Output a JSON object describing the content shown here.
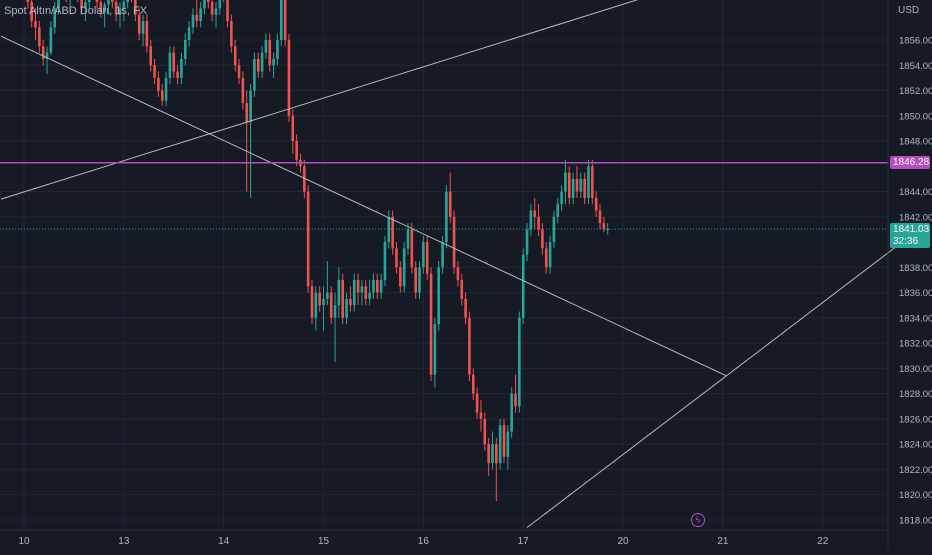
{
  "header": {
    "symbol": "Spot Altın/ABD Doları, 1s, FX",
    "currency": "USD"
  },
  "tags": {
    "level_price": "1846.28",
    "last_price": "1841.03",
    "countdown": "32:36"
  },
  "colors": {
    "background": "#161a25",
    "grid": "#232734",
    "up": "#26a69a",
    "down": "#ef5350",
    "trend_line": "#b7bac2",
    "level_line": "#b84ac2",
    "last_price_line": "#26a69a",
    "axis_text": "#b2b5be"
  },
  "icons": {
    "alert": "lightning-bolt-icon"
  },
  "chart_data": {
    "type": "candlestick",
    "title": "Spot Altın/ABD Doları, 1s, FX",
    "ylim": [
      1817,
      1860
    ],
    "y_ticks": [
      1856,
      1854,
      1852,
      1850,
      1848,
      1844,
      1842,
      1838,
      1836,
      1834,
      1832,
      1830,
      1828,
      1826,
      1824,
      1822,
      1820,
      1818
    ],
    "y_tick_labels": [
      "1856.00",
      "1854.00",
      "1852.00",
      "1850.00",
      "1848.00",
      "1844.00",
      "1842.00",
      "1838.00",
      "1836.00",
      "1834.00",
      "1832.00",
      "1830.00",
      "1828.00",
      "1826.00",
      "1824.00",
      "1822.00",
      "1820.00",
      "1818.00"
    ],
    "x_tick_labels": [
      "10",
      "13",
      "14",
      "15",
      "16",
      "17",
      "20",
      "21",
      "22"
    ],
    "x_tick_bar_index": [
      0,
      26,
      52,
      78,
      104,
      130,
      156,
      182,
      208
    ],
    "horizontal_level": 1846.28,
    "last_price": 1841.03,
    "trend_lines": [
      {
        "from": [
          -6,
          1856.3
        ],
        "to": [
          183,
          1829.4
        ]
      },
      {
        "from": [
          -6,
          1843.4
        ],
        "to": [
          183,
          1861.4
        ]
      },
      {
        "from": [
          131,
          1817.4
        ],
        "to": [
          233,
          1841.0
        ]
      }
    ],
    "candles": [
      [
        1861.0,
        1861.5,
        1859.5,
        1860.0
      ],
      [
        1860.0,
        1861.0,
        1858.5,
        1859.0
      ],
      [
        1859.0,
        1860.0,
        1857.0,
        1857.5
      ],
      [
        1857.5,
        1858.5,
        1856.0,
        1857.0
      ],
      [
        1857.0,
        1857.5,
        1855.0,
        1855.5
      ],
      [
        1855.5,
        1856.0,
        1854.0,
        1854.5
      ],
      [
        1854.5,
        1855.5,
        1853.3,
        1855.0
      ],
      [
        1855.0,
        1857.5,
        1854.8,
        1857.0
      ],
      [
        1857.0,
        1859.0,
        1856.5,
        1858.5
      ],
      [
        1858.5,
        1861.0,
        1858.0,
        1860.5
      ],
      [
        1860.5,
        1861.5,
        1859.5,
        1861.0
      ],
      [
        1861.0,
        1861.5,
        1859.0,
        1859.5
      ],
      [
        1859.5,
        1860.5,
        1858.0,
        1860.0
      ],
      [
        1860.0,
        1861.5,
        1859.5,
        1861.0
      ],
      [
        1861.0,
        1861.5,
        1859.0,
        1859.5
      ],
      [
        1859.5,
        1860.0,
        1858.0,
        1858.5
      ],
      [
        1858.5,
        1859.5,
        1857.5,
        1859.0
      ],
      [
        1859.0,
        1861.0,
        1858.5,
        1860.5
      ],
      [
        1860.5,
        1861.5,
        1859.5,
        1860.0
      ],
      [
        1860.0,
        1860.5,
        1858.5,
        1859.0
      ],
      [
        1859.0,
        1859.5,
        1857.8,
        1858.2
      ],
      [
        1858.2,
        1859.0,
        1857.0,
        1858.8
      ],
      [
        1858.8,
        1860.5,
        1858.0,
        1860.0
      ],
      [
        1860.0,
        1860.8,
        1858.5,
        1859.0
      ],
      [
        1859.0,
        1859.8,
        1857.5,
        1858.0
      ],
      [
        1858.0,
        1859.0,
        1857.0,
        1858.5
      ],
      [
        1858.5,
        1859.5,
        1857.5,
        1859.0
      ],
      [
        1859.0,
        1860.5,
        1858.5,
        1860.0
      ],
      [
        1860.0,
        1861.0,
        1859.0,
        1859.5
      ],
      [
        1859.5,
        1860.0,
        1857.5,
        1858.0
      ],
      [
        1858.0,
        1858.5,
        1856.0,
        1856.5
      ],
      [
        1856.5,
        1858.0,
        1855.5,
        1857.5
      ],
      [
        1857.5,
        1858.0,
        1855.0,
        1855.5
      ],
      [
        1855.5,
        1856.0,
        1853.5,
        1854.0
      ],
      [
        1854.0,
        1854.5,
        1852.5,
        1853.0
      ],
      [
        1853.0,
        1853.5,
        1851.5,
        1852.0
      ],
      [
        1852.0,
        1852.5,
        1850.8,
        1851.2
      ],
      [
        1851.2,
        1853.5,
        1850.8,
        1853.0
      ],
      [
        1853.0,
        1855.5,
        1852.5,
        1855.0
      ],
      [
        1855.0,
        1855.5,
        1853.0,
        1853.5
      ],
      [
        1853.5,
        1854.0,
        1852.5,
        1853.0
      ],
      [
        1853.0,
        1855.0,
        1852.5,
        1854.5
      ],
      [
        1854.5,
        1856.5,
        1854.0,
        1856.0
      ],
      [
        1856.0,
        1857.5,
        1855.5,
        1857.0
      ],
      [
        1857.0,
        1858.5,
        1856.5,
        1858.0
      ],
      [
        1858.0,
        1859.5,
        1857.0,
        1857.5
      ],
      [
        1857.5,
        1859.0,
        1857.0,
        1858.5
      ],
      [
        1858.5,
        1860.5,
        1858.0,
        1860.0
      ],
      [
        1860.0,
        1860.5,
        1858.5,
        1859.0
      ],
      [
        1859.0,
        1859.5,
        1857.5,
        1858.0
      ],
      [
        1858.0,
        1859.0,
        1857.0,
        1858.5
      ],
      [
        1858.5,
        1860.5,
        1858.0,
        1860.0
      ],
      [
        1860.0,
        1861.0,
        1859.0,
        1859.5
      ],
      [
        1859.5,
        1860.0,
        1857.0,
        1857.5
      ],
      [
        1857.5,
        1858.0,
        1855.0,
        1855.5
      ],
      [
        1855.5,
        1856.0,
        1853.5,
        1854.0
      ],
      [
        1854.0,
        1854.5,
        1852.5,
        1853.0
      ],
      [
        1853.0,
        1853.5,
        1850.5,
        1851.0
      ],
      [
        1851.0,
        1852.0,
        1844.0,
        1849.5
      ],
      [
        1849.5,
        1852.5,
        1843.5,
        1852.0
      ],
      [
        1852.0,
        1855.0,
        1851.5,
        1854.5
      ],
      [
        1854.5,
        1855.0,
        1853.0,
        1853.5
      ],
      [
        1853.5,
        1855.5,
        1853.0,
        1855.0
      ],
      [
        1855.0,
        1856.5,
        1854.5,
        1856.0
      ],
      [
        1856.0,
        1856.5,
        1853.5,
        1854.0
      ],
      [
        1854.0,
        1855.0,
        1853.0,
        1854.5
      ],
      [
        1854.5,
        1856.5,
        1854.0,
        1856.0
      ],
      [
        1856.0,
        1860.0,
        1855.5,
        1859.5
      ],
      [
        1859.5,
        1861.0,
        1855.5,
        1856.0
      ],
      [
        1856.0,
        1856.5,
        1849.5,
        1850.0
      ],
      [
        1850.0,
        1850.5,
        1847.0,
        1848.0
      ],
      [
        1848.0,
        1848.5,
        1846.0,
        1846.5
      ],
      [
        1846.5,
        1847.0,
        1845.5,
        1846.0
      ],
      [
        1846.0,
        1846.5,
        1843.5,
        1844.0
      ],
      [
        1844.0,
        1844.5,
        1836.0,
        1836.5
      ],
      [
        1836.5,
        1837.0,
        1833.5,
        1834.0
      ],
      [
        1834.0,
        1836.5,
        1833.0,
        1836.0
      ],
      [
        1836.0,
        1836.5,
        1834.5,
        1835.0
      ],
      [
        1835.0,
        1836.5,
        1833.0,
        1835.5
      ],
      [
        1835.5,
        1838.5,
        1835.0,
        1836.0
      ],
      [
        1836.0,
        1836.5,
        1833.5,
        1834.0
      ],
      [
        1834.0,
        1836.0,
        1830.5,
        1835.0
      ],
      [
        1835.0,
        1838.0,
        1834.0,
        1837.0
      ],
      [
        1837.0,
        1837.5,
        1833.5,
        1834.0
      ],
      [
        1834.0,
        1836.0,
        1833.5,
        1835.5
      ],
      [
        1835.5,
        1836.5,
        1834.5,
        1835.0
      ],
      [
        1835.0,
        1837.5,
        1834.5,
        1837.0
      ],
      [
        1837.0,
        1837.5,
        1835.0,
        1836.0
      ],
      [
        1836.0,
        1837.0,
        1835.0,
        1836.5
      ],
      [
        1836.5,
        1837.0,
        1835.0,
        1835.5
      ],
      [
        1835.5,
        1837.0,
        1835.0,
        1836.0
      ],
      [
        1836.0,
        1837.5,
        1835.5,
        1837.0
      ],
      [
        1837.0,
        1837.5,
        1835.5,
        1836.0
      ],
      [
        1836.0,
        1837.5,
        1835.5,
        1837.0
      ],
      [
        1837.0,
        1840.5,
        1836.5,
        1840.0
      ],
      [
        1840.0,
        1842.5,
        1839.5,
        1842.0
      ],
      [
        1842.0,
        1842.5,
        1839.0,
        1839.5
      ],
      [
        1839.5,
        1840.0,
        1837.5,
        1838.0
      ],
      [
        1838.0,
        1838.5,
        1836.0,
        1836.5
      ],
      [
        1836.5,
        1840.0,
        1836.0,
        1839.5
      ],
      [
        1839.5,
        1841.5,
        1839.0,
        1841.0
      ],
      [
        1841.0,
        1841.5,
        1837.5,
        1838.0
      ],
      [
        1838.0,
        1838.5,
        1835.5,
        1836.0
      ],
      [
        1836.0,
        1838.5,
        1835.5,
        1838.0
      ],
      [
        1838.0,
        1840.5,
        1837.5,
        1840.0
      ],
      [
        1840.0,
        1840.5,
        1837.0,
        1837.5
      ],
      [
        1837.5,
        1838.0,
        1829.0,
        1829.5
      ],
      [
        1829.5,
        1834.0,
        1828.5,
        1833.5
      ],
      [
        1833.5,
        1838.5,
        1833.0,
        1838.0
      ],
      [
        1838.0,
        1840.5,
        1837.5,
        1840.0
      ],
      [
        1840.0,
        1844.5,
        1839.5,
        1844.0
      ],
      [
        1844.0,
        1845.5,
        1841.5,
        1842.0
      ],
      [
        1842.0,
        1842.5,
        1837.5,
        1838.0
      ],
      [
        1838.0,
        1838.5,
        1836.5,
        1837.0
      ],
      [
        1837.0,
        1837.5,
        1835.0,
        1835.5
      ],
      [
        1835.5,
        1836.0,
        1833.5,
        1834.0
      ],
      [
        1834.0,
        1834.5,
        1829.0,
        1829.5
      ],
      [
        1829.5,
        1830.0,
        1827.5,
        1828.0
      ],
      [
        1828.0,
        1828.5,
        1826.0,
        1826.5
      ],
      [
        1826.5,
        1827.5,
        1825.0,
        1826.0
      ],
      [
        1826.0,
        1826.5,
        1823.5,
        1824.0
      ],
      [
        1824.0,
        1824.5,
        1821.5,
        1822.5
      ],
      [
        1822.5,
        1825.0,
        1822.0,
        1824.0
      ],
      [
        1824.0,
        1824.5,
        1819.5,
        1822.5
      ],
      [
        1822.5,
        1826.0,
        1822.0,
        1825.5
      ],
      [
        1825.5,
        1826.0,
        1822.5,
        1823.0
      ],
      [
        1823.0,
        1825.5,
        1822.0,
        1825.0
      ],
      [
        1825.0,
        1828.5,
        1824.5,
        1828.0
      ],
      [
        1828.0,
        1829.5,
        1826.5,
        1827.0
      ],
      [
        1827.0,
        1834.5,
        1826.5,
        1834.0
      ],
      [
        1834.0,
        1839.5,
        1833.5,
        1839.0
      ],
      [
        1839.0,
        1841.5,
        1838.5,
        1841.0
      ],
      [
        1841.0,
        1843.0,
        1840.5,
        1842.5
      ],
      [
        1842.5,
        1843.5,
        1841.0,
        1842.0
      ],
      [
        1842.0,
        1843.0,
        1840.5,
        1841.0
      ],
      [
        1841.0,
        1841.5,
        1839.0,
        1839.5
      ],
      [
        1839.5,
        1840.0,
        1837.5,
        1838.0
      ],
      [
        1838.0,
        1840.5,
        1837.5,
        1840.0
      ],
      [
        1840.0,
        1842.5,
        1839.5,
        1842.0
      ],
      [
        1842.0,
        1843.5,
        1841.5,
        1843.0
      ],
      [
        1843.0,
        1844.5,
        1842.5,
        1844.0
      ],
      [
        1844.0,
        1846.5,
        1843.0,
        1845.5
      ],
      [
        1845.5,
        1846.0,
        1843.0,
        1843.5
      ],
      [
        1843.5,
        1845.5,
        1843.0,
        1845.0
      ],
      [
        1845.0,
        1846.0,
        1843.5,
        1844.0
      ],
      [
        1844.0,
        1845.5,
        1843.5,
        1845.0
      ],
      [
        1845.0,
        1845.5,
        1843.0,
        1843.5
      ],
      [
        1843.5,
        1846.5,
        1843.0,
        1846.0
      ],
      [
        1846.0,
        1846.5,
        1843.0,
        1843.5
      ],
      [
        1843.5,
        1844.0,
        1842.0,
        1842.5
      ],
      [
        1842.5,
        1843.0,
        1841.0,
        1841.5
      ],
      [
        1841.5,
        1842.0,
        1840.8,
        1841.0
      ],
      [
        1841.0,
        1841.5,
        1840.6,
        1841.03
      ]
    ]
  }
}
